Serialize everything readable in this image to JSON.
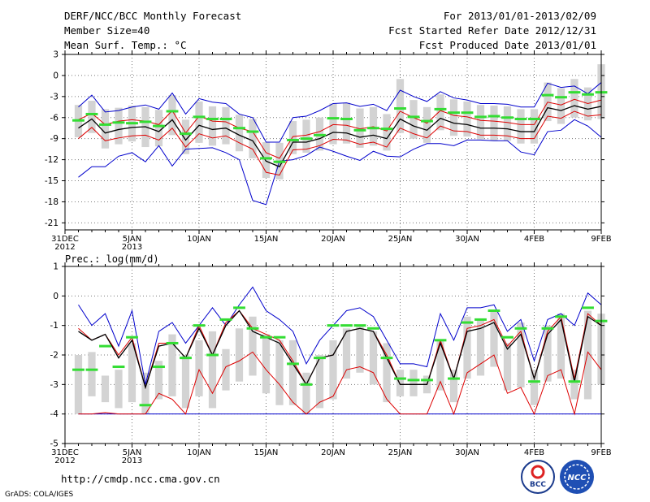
{
  "header": {
    "title": "DERF/NCC/BCC Monthly Forecast",
    "member_size": "Member Size=40",
    "variable": "Mean Surf. Temp.: °C",
    "period": "For 2013/01/01-2013/02/09",
    "fcst_started": "Fcst Started Refer Date 2012/12/31",
    "fcst_produced": "Fcst Produced Date 2013/01/01"
  },
  "precip_label": "Prec.: log(mm/d)",
  "footer": {
    "url": "http://cmdp.ncc.cma.gov.cn",
    "grads": "GrADS: COLA/IGES",
    "logo1": "BCC",
    "logo2": "NCC"
  },
  "colors": {
    "spread": "#d3d3d3",
    "member_mean": "#33dd33",
    "ensemble": "#000000",
    "quartile": "#dd0000",
    "extreme": "#0000cc",
    "grid": "#777777"
  },
  "chart_data": [
    {
      "type": "line",
      "title": "Mean Surf. Temp.: °C",
      "ylim": [
        -22,
        3
      ],
      "yticks": [
        3,
        0,
        -3,
        -6,
        -9,
        -12,
        -15,
        -18,
        -21
      ],
      "xticks": [
        {
          "day": 0,
          "label": "31DEC",
          "sub": "2012"
        },
        {
          "day": 5,
          "label": "5JAN",
          "sub": "2013"
        },
        {
          "day": 10,
          "label": "10JAN"
        },
        {
          "day": 15,
          "label": "15JAN"
        },
        {
          "day": 20,
          "label": "20JAN"
        },
        {
          "day": 25,
          "label": "25JAN"
        },
        {
          "day": 30,
          "label": "30JAN"
        },
        {
          "day": 35,
          "label": "4FEB"
        },
        {
          "day": 40,
          "label": "9FEB"
        }
      ],
      "days": [
        1,
        2,
        3,
        4,
        5,
        6,
        7,
        8,
        9,
        10,
        11,
        12,
        13,
        14,
        15,
        16,
        17,
        18,
        19,
        20,
        21,
        22,
        23,
        24,
        25,
        26,
        27,
        28,
        29,
        30,
        31,
        32,
        33,
        34,
        35,
        36,
        37,
        38,
        39,
        40
      ],
      "max": [
        -4.5,
        -2.8,
        -5.2,
        -5,
        -4.5,
        -4.2,
        -4.8,
        -2.5,
        -5.5,
        -3.3,
        -3.8,
        -4,
        -5.5,
        -6,
        -9.5,
        -9.5,
        -6,
        -5.8,
        -5,
        -4,
        -3.9,
        -4.4,
        -4.1,
        -5,
        -2.1,
        -3,
        -3.7,
        -2.3,
        -3.2,
        -3.5,
        -4,
        -4,
        -4.1,
        -4.5,
        -4.5,
        -1.1,
        -1.7,
        -1.5,
        -2.6,
        -1
      ],
      "q_upper": [
        -6.3,
        -5.4,
        -7,
        -6.5,
        -6.3,
        -6.5,
        -7,
        -5,
        -8.2,
        -5.8,
        -6.5,
        -6.6,
        -7.5,
        -8,
        -11,
        -11.8,
        -8.7,
        -8.5,
        -8,
        -7,
        -7.1,
        -7.6,
        -7.3,
        -7.9,
        -5.1,
        -6,
        -6.8,
        -5,
        -5.7,
        -5.9,
        -6.4,
        -6.5,
        -6.7,
        -7,
        -7,
        -3.8,
        -4.2,
        -3.4,
        -4,
        -3.5
      ],
      "ensemble": [
        -7.5,
        -6.2,
        -8.2,
        -7.7,
        -7.4,
        -7.3,
        -8,
        -6.3,
        -9.2,
        -7.1,
        -7.7,
        -7.5,
        -8.5,
        -9.3,
        -12.2,
        -13,
        -9.5,
        -9.5,
        -9,
        -8.1,
        -8.2,
        -8.8,
        -8.5,
        -9,
        -6.2,
        -7.2,
        -7.8,
        -6.1,
        -6.8,
        -7,
        -7.5,
        -7.5,
        -7.6,
        -8,
        -8,
        -4.6,
        -5,
        -4.3,
        -4.8,
        -4.4
      ],
      "q_lower": [
        -9,
        -7.4,
        -9.3,
        -8.9,
        -8.6,
        -8.5,
        -9.2,
        -7.5,
        -10.2,
        -8.3,
        -8.9,
        -8.6,
        -9.6,
        -10.5,
        -13.8,
        -14.2,
        -10.6,
        -10.5,
        -10,
        -9.1,
        -9.2,
        -9.8,
        -9.5,
        -10.2,
        -7.5,
        -8.3,
        -8.9,
        -7.2,
        -7.9,
        -8,
        -8.5,
        -8.5,
        -8.6,
        -9,
        -9,
        -5.8,
        -6.1,
        -5.1,
        -5.8,
        -5.6
      ],
      "min": [
        -14.5,
        -13,
        -13,
        -11.5,
        -11,
        -12.3,
        -10,
        -12.9,
        -10.5,
        -10.4,
        -10.3,
        -11,
        -12,
        -17.8,
        -18.4,
        -12.2,
        -12,
        -11.4,
        -10.2,
        -10.8,
        -11.5,
        -12.1,
        -10.8,
        -11.5,
        -11.6,
        -10.5,
        -9.7,
        -9.7,
        -10,
        -9.2,
        -9.2,
        -9.3,
        -9.3,
        -10.9,
        -11.3,
        -8,
        -7.8,
        -6.3,
        -7.2,
        -8.8
      ],
      "box_top": [
        -4.2,
        -3.6,
        -4.8,
        -4.6,
        -4.3,
        -4.5,
        -4.9,
        -2.8,
        -6.3,
        -3.7,
        -4.4,
        -4.5,
        -5.6,
        -6.2,
        -9.5,
        -9.6,
        -6.5,
        -6.3,
        -6,
        -4,
        -3.9,
        -4.7,
        -4.5,
        -5.5,
        -0.5,
        -3.5,
        -4.5,
        -2.7,
        -3.4,
        -3.7,
        -4.2,
        -4.3,
        -4.4,
        -4.8,
        -4.8,
        -1,
        -1.8,
        -0.5,
        -1.7,
        1.6
      ],
      "box_bottom": [
        -8.8,
        -8.2,
        -10.4,
        -9.8,
        -9.4,
        -10.2,
        -10.1,
        -8.5,
        -11.2,
        -9.6,
        -10,
        -9.8,
        -10.8,
        -11.8,
        -14.6,
        -14.8,
        -11.2,
        -11,
        -10.7,
        -9.8,
        -9.7,
        -10.3,
        -10,
        -10.7,
        -8.2,
        -9,
        -9.6,
        -7.8,
        -8.6,
        -8.7,
        -9.1,
        -9.3,
        -9.3,
        -9.7,
        -9.7,
        -6.5,
        -6.9,
        -6,
        -6.4,
        -6.2
      ],
      "member_mean": [
        -6.4,
        -5.5,
        -7,
        -6.7,
        -6.8,
        -6.6,
        -7.2,
        -5.1,
        -8.3,
        -5.9,
        -6.2,
        -6.2,
        -7.5,
        -8,
        -11.8,
        -12.3,
        -9.2,
        -9,
        -8.5,
        -6.1,
        -6.2,
        -7.8,
        -7.5,
        -7.6,
        -4.7,
        -5.9,
        -6.5,
        -4.8,
        -5.3,
        -5.3,
        -5.9,
        -5.8,
        -6,
        -6.2,
        -6.2,
        -2.8,
        -3.1,
        -2.4,
        -2.7,
        -2.4
      ]
    },
    {
      "type": "line",
      "title": "Prec.: log(mm/d)",
      "ylim": [
        -5,
        1
      ],
      "yticks": [
        1,
        0,
        -1,
        -2,
        -3,
        -4,
        -5
      ],
      "xticks": [
        {
          "day": 0,
          "label": "31DEC",
          "sub": "2012"
        },
        {
          "day": 5,
          "label": "5JAN",
          "sub": "2013"
        },
        {
          "day": 10,
          "label": "10JAN"
        },
        {
          "day": 15,
          "label": "15JAN"
        },
        {
          "day": 20,
          "label": "20JAN"
        },
        {
          "day": 25,
          "label": "25JAN"
        },
        {
          "day": 30,
          "label": "30JAN"
        },
        {
          "day": 35,
          "label": "4FEB"
        },
        {
          "day": 40,
          "label": "9FEB"
        }
      ],
      "days": [
        1,
        2,
        3,
        4,
        5,
        6,
        7,
        8,
        9,
        10,
        11,
        12,
        13,
        14,
        15,
        16,
        17,
        18,
        19,
        20,
        21,
        22,
        23,
        24,
        25,
        26,
        27,
        28,
        29,
        30,
        31,
        32,
        33,
        34,
        35,
        36,
        37,
        38,
        39,
        40
      ],
      "max": [
        -0.3,
        -1,
        -0.6,
        -1.7,
        -0.5,
        -3,
        -1.2,
        -0.9,
        -1.6,
        -1,
        -0.4,
        -1,
        -0.3,
        0.3,
        -0.5,
        -0.8,
        -1.2,
        -2.3,
        -1.5,
        -1,
        -0.5,
        -0.4,
        -0.7,
        -1.5,
        -2.3,
        -2.3,
        -2.4,
        -0.6,
        -1.5,
        -0.4,
        -0.4,
        -0.3,
        -1.2,
        -0.8,
        -2.2,
        -0.8,
        -0.6,
        -1,
        0.1,
        -0.3
      ],
      "q_upper": [
        -1.1,
        -1.5,
        -1.3,
        -2,
        -1.4,
        -3.1,
        -1.6,
        -1.6,
        -2.1,
        -1,
        -2,
        -0.9,
        -0.5,
        -1.1,
        -1.3,
        -1.5,
        -2.2,
        -3,
        -2.1,
        -2,
        -1.2,
        -1.1,
        -1.2,
        -2,
        -3,
        -3,
        -3,
        -1.5,
        -2.8,
        -1.1,
        -1,
        -0.8,
        -1.7,
        -1.2,
        -2.8,
        -1.2,
        -0.7,
        -2.8,
        -0.6,
        -1
      ],
      "ensemble": [
        -1.2,
        -1.5,
        -1.3,
        -2.1,
        -1.5,
        -3.1,
        -1.7,
        -1.6,
        -2.1,
        -1.1,
        -2,
        -1,
        -0.5,
        -1.2,
        -1.4,
        -1.6,
        -2.3,
        -3,
        -2.1,
        -2,
        -1.2,
        -1.1,
        -1.2,
        -2.1,
        -3,
        -3,
        -3,
        -1.6,
        -2.8,
        -1.2,
        -1.1,
        -0.9,
        -1.8,
        -1.3,
        -2.8,
        -1.3,
        -0.8,
        -2.9,
        -0.7,
        -1
      ],
      "q_lower": [
        -4,
        -4,
        -3.95,
        -4,
        -4,
        -4,
        -3.3,
        -3.5,
        -4,
        -2.5,
        -3.3,
        -2.4,
        -2.2,
        -1.9,
        -2.5,
        -3,
        -3.6,
        -4,
        -3.6,
        -3.4,
        -2.5,
        -2.4,
        -2.6,
        -3.5,
        -4,
        -4,
        -4,
        -2.9,
        -4,
        -2.6,
        -2.3,
        -2,
        -3.3,
        -3.1,
        -4,
        -2.7,
        -2.5,
        -4,
        -1.9,
        -2.5
      ],
      "min": [
        -4,
        -4,
        -4,
        -4,
        -4,
        -4,
        -4,
        -4,
        -4,
        -4,
        -4,
        -4,
        -4,
        -4,
        -4,
        -4,
        -4,
        -4,
        -4,
        -4,
        -4,
        -4,
        -4,
        -4,
        -4,
        -4,
        -4,
        -4,
        -4,
        -4,
        -4,
        -4,
        -4,
        -4,
        -4,
        -4,
        -4,
        -4,
        -4,
        -4
      ],
      "box_top": [
        -2,
        -1.9,
        -2.7,
        -2.5,
        -1.6,
        -2.6,
        -2.2,
        -1.3,
        -2,
        -1.5,
        -1.2,
        -1.8,
        -1.1,
        -0.7,
        -1.3,
        -1.5,
        -1.5,
        -2.6,
        -2,
        -1.5,
        -1.1,
        -1,
        -1.2,
        -1.6,
        -2.5,
        -2.5,
        -2.7,
        -1.5,
        -2.5,
        -0.7,
        -0.8,
        -0.5,
        -1.6,
        -0.9,
        -2.5,
        -1,
        -0.6,
        -2.5,
        -0.5,
        -0.6
      ],
      "box_bottom": [
        -4,
        -3.4,
        -3.6,
        -3.8,
        -3.6,
        -4,
        -3.5,
        -3.4,
        -3.8,
        -3.4,
        -3.8,
        -3.2,
        -2.9,
        -2.7,
        -3.3,
        -3.7,
        -3.7,
        -4,
        -3.8,
        -3.5,
        -2.8,
        -2.6,
        -3,
        -3.6,
        -3.4,
        -3.4,
        -3.3,
        -3.2,
        -3.6,
        -2.8,
        -2.7,
        -2.4,
        -3.2,
        -3.1,
        -3.7,
        -2.9,
        -2.8,
        -3.5,
        -3.5,
        -3
      ],
      "member_mean": [
        -2.5,
        -2.5,
        -1.7,
        -2.4,
        -1.4,
        -3.7,
        -2.4,
        -1.6,
        -2.1,
        -1,
        -2,
        -0.8,
        -0.4,
        -1.1,
        -1.4,
        -1.4,
        -2.3,
        -3,
        -2.1,
        -1,
        -1,
        -1,
        -1.1,
        -2.1,
        -2.8,
        -2.85,
        -2.85,
        -1.5,
        -2.8,
        -0.9,
        -0.8,
        -0.5,
        -1.4,
        -1.1,
        -2.9,
        -1.1,
        -0.7,
        -2.9,
        -0.4,
        -0.85
      ]
    }
  ]
}
